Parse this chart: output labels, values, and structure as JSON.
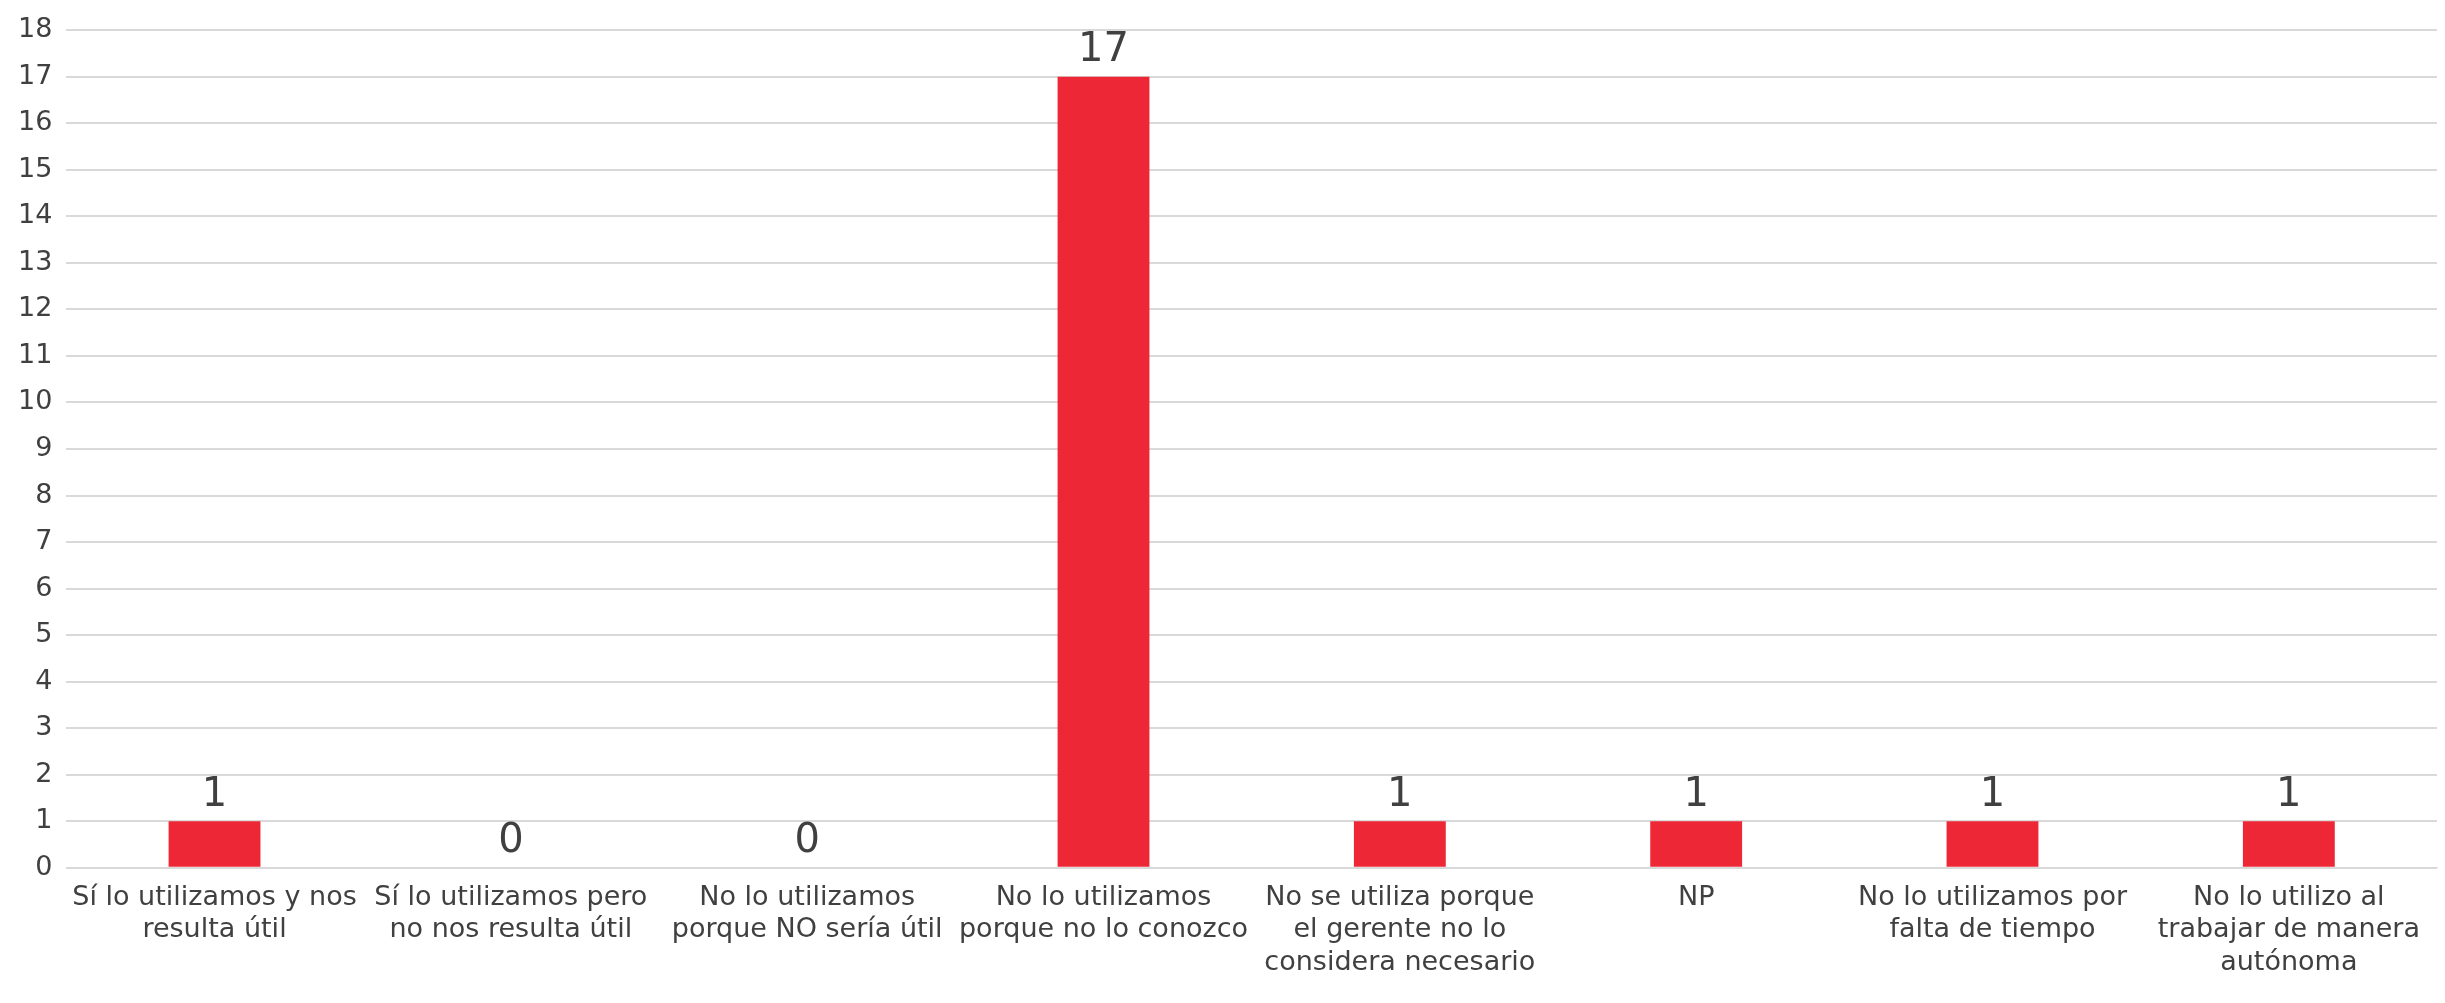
{
  "chart_data": {
    "type": "bar",
    "categories": [
      "Sí lo utilizamos y nos resulta útil",
      "Sí lo utilizamos pero no nos resulta útil",
      "No lo utilizamos porque NO sería útil",
      "No lo utilizamos porque no lo conozco",
      "No se utiliza porque el gerente no lo considera necesario",
      "NP",
      "No lo utilizamos por falta de tiempo",
      "No lo utilizo al trabajar de manera autónoma"
    ],
    "values": [
      1,
      0,
      0,
      17,
      1,
      1,
      1,
      1
    ],
    "color": "#ee2737",
    "ylim": [
      0,
      18
    ],
    "yticks": [
      0,
      1,
      2,
      3,
      4,
      5,
      6,
      7,
      8,
      9,
      10,
      11,
      12,
      13,
      14,
      15,
      16,
      17,
      18
    ],
    "grid": "y",
    "data_labels": true
  }
}
